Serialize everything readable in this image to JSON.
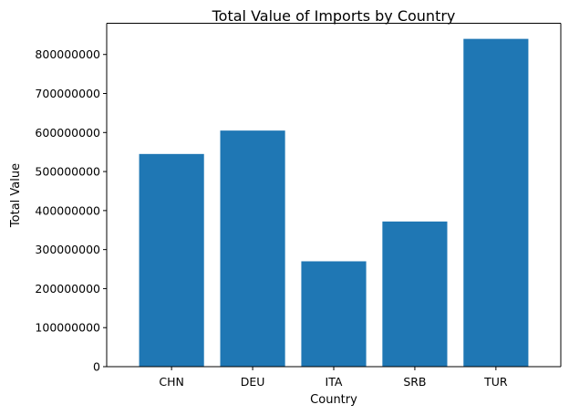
{
  "chart_data": {
    "type": "bar",
    "title": "Total Value of Imports by Country",
    "xlabel": "Country",
    "ylabel": "Total Value",
    "categories": [
      "CHN",
      "DEU",
      "ITA",
      "SRB",
      "TUR"
    ],
    "values": [
      545000000,
      605000000,
      270000000,
      372000000,
      840000000
    ],
    "ylim": [
      0,
      880000000
    ],
    "yticks": [
      0,
      100000000,
      200000000,
      300000000,
      400000000,
      500000000,
      600000000,
      700000000,
      800000000
    ],
    "ytick_labels": [
      "0",
      "100000000",
      "200000000",
      "300000000",
      "400000000",
      "500000000",
      "600000000",
      "700000000",
      "800000000"
    ],
    "bar_color": "#1f77b4",
    "grid": false,
    "legend": "none"
  }
}
